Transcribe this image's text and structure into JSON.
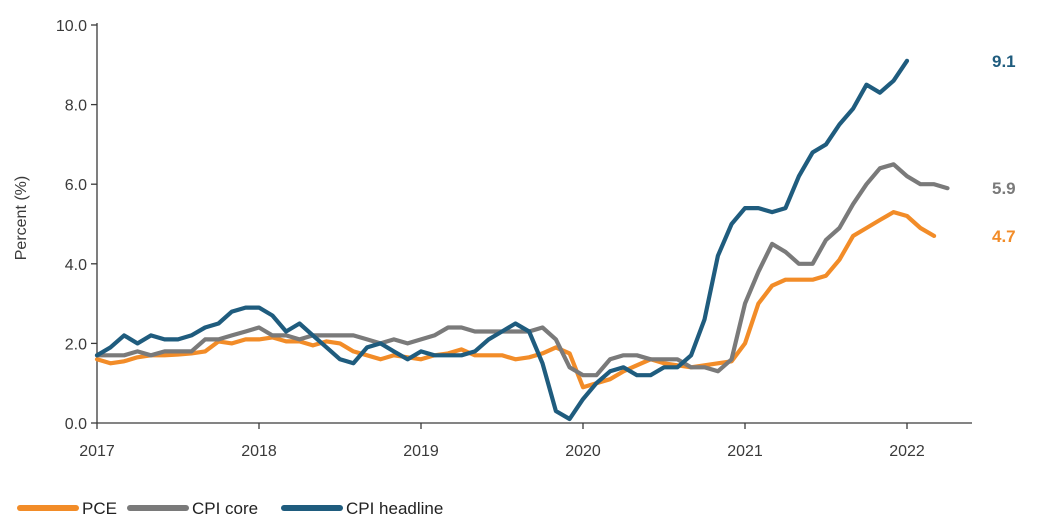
{
  "chart_data": {
    "type": "line",
    "ylabel": "Percent (%)",
    "xlabel": "",
    "ylim": [
      0,
      10
    ],
    "xlim": [
      2017,
      2022.42
    ],
    "yticks": [
      0,
      2,
      4,
      6,
      8,
      10
    ],
    "ytick_labels": [
      "0.0",
      "2.0",
      "4.0",
      "6.0",
      "8.0",
      "10.0"
    ],
    "xticks": [
      2017,
      2018,
      2019,
      2020,
      2021,
      2022
    ],
    "xtick_labels": [
      "2017",
      "2018",
      "2019",
      "2020",
      "2021",
      "2022"
    ],
    "grid": false,
    "legend_position": "bottom-left",
    "series": [
      {
        "name": "PCE",
        "color": "#F28C28",
        "end_label": "4.7",
        "points": [
          [
            2017.0,
            1.6
          ],
          [
            2017.083,
            1.5
          ],
          [
            2017.167,
            1.55
          ],
          [
            2017.25,
            1.65
          ],
          [
            2017.333,
            1.7
          ],
          [
            2017.417,
            1.7
          ],
          [
            2017.5,
            1.72
          ],
          [
            2017.583,
            1.75
          ],
          [
            2017.667,
            1.8
          ],
          [
            2017.75,
            2.05
          ],
          [
            2017.833,
            2.0
          ],
          [
            2017.917,
            2.1
          ],
          [
            2018.0,
            2.1
          ],
          [
            2018.083,
            2.15
          ],
          [
            2018.167,
            2.05
          ],
          [
            2018.25,
            2.05
          ],
          [
            2018.333,
            1.95
          ],
          [
            2018.417,
            2.05
          ],
          [
            2018.5,
            2.0
          ],
          [
            2018.583,
            1.8
          ],
          [
            2018.667,
            1.7
          ],
          [
            2018.75,
            1.6
          ],
          [
            2018.833,
            1.7
          ],
          [
            2018.917,
            1.65
          ],
          [
            2019.0,
            1.6
          ],
          [
            2019.083,
            1.7
          ],
          [
            2019.167,
            1.75
          ],
          [
            2019.25,
            1.85
          ],
          [
            2019.333,
            1.7
          ],
          [
            2019.417,
            1.7
          ],
          [
            2019.5,
            1.7
          ],
          [
            2019.583,
            1.6
          ],
          [
            2019.667,
            1.65
          ],
          [
            2019.75,
            1.75
          ],
          [
            2019.833,
            1.9
          ],
          [
            2019.917,
            1.75
          ],
          [
            2020.0,
            0.9
          ],
          [
            2020.083,
            1.0
          ],
          [
            2020.167,
            1.1
          ],
          [
            2020.25,
            1.3
          ],
          [
            2020.333,
            1.45
          ],
          [
            2020.417,
            1.6
          ],
          [
            2020.5,
            1.5
          ],
          [
            2020.583,
            1.45
          ],
          [
            2020.667,
            1.4
          ],
          [
            2020.75,
            1.45
          ],
          [
            2020.833,
            1.5
          ],
          [
            2020.917,
            1.55
          ],
          [
            2021.0,
            2.0
          ],
          [
            2021.083,
            3.0
          ],
          [
            2021.167,
            3.45
          ],
          [
            2021.25,
            3.6
          ],
          [
            2021.333,
            3.6
          ],
          [
            2021.417,
            3.6
          ],
          [
            2021.5,
            3.7
          ],
          [
            2021.583,
            4.1
          ],
          [
            2021.667,
            4.7
          ],
          [
            2021.75,
            4.9
          ],
          [
            2021.833,
            5.1
          ],
          [
            2021.917,
            5.3
          ],
          [
            2022.0,
            5.2
          ],
          [
            2022.083,
            4.9
          ],
          [
            2022.167,
            4.7
          ]
        ]
      },
      {
        "name": "CPI core",
        "color": "#7A7A7A",
        "end_label": "5.9",
        "points": [
          [
            2017.0,
            1.7
          ],
          [
            2017.083,
            1.7
          ],
          [
            2017.167,
            1.7
          ],
          [
            2017.25,
            1.8
          ],
          [
            2017.333,
            1.7
          ],
          [
            2017.417,
            1.8
          ],
          [
            2017.5,
            1.8
          ],
          [
            2017.583,
            1.8
          ],
          [
            2017.667,
            2.1
          ],
          [
            2017.75,
            2.1
          ],
          [
            2017.833,
            2.2
          ],
          [
            2017.917,
            2.3
          ],
          [
            2018.0,
            2.4
          ],
          [
            2018.083,
            2.2
          ],
          [
            2018.167,
            2.2
          ],
          [
            2018.25,
            2.1
          ],
          [
            2018.333,
            2.2
          ],
          [
            2018.417,
            2.2
          ],
          [
            2018.5,
            2.2
          ],
          [
            2018.583,
            2.2
          ],
          [
            2018.667,
            2.1
          ],
          [
            2018.75,
            2.0
          ],
          [
            2018.833,
            2.1
          ],
          [
            2018.917,
            2.0
          ],
          [
            2019.0,
            2.1
          ],
          [
            2019.083,
            2.2
          ],
          [
            2019.167,
            2.4
          ],
          [
            2019.25,
            2.4
          ],
          [
            2019.333,
            2.3
          ],
          [
            2019.417,
            2.3
          ],
          [
            2019.5,
            2.3
          ],
          [
            2019.583,
            2.3
          ],
          [
            2019.667,
            2.3
          ],
          [
            2019.75,
            2.4
          ],
          [
            2019.833,
            2.1
          ],
          [
            2019.917,
            1.4
          ],
          [
            2020.0,
            1.2
          ],
          [
            2020.083,
            1.2
          ],
          [
            2020.167,
            1.6
          ],
          [
            2020.25,
            1.7
          ],
          [
            2020.333,
            1.7
          ],
          [
            2020.417,
            1.6
          ],
          [
            2020.5,
            1.6
          ],
          [
            2020.583,
            1.6
          ],
          [
            2020.667,
            1.4
          ],
          [
            2020.75,
            1.4
          ],
          [
            2020.833,
            1.3
          ],
          [
            2020.917,
            1.6
          ],
          [
            2021.0,
            3.0
          ],
          [
            2021.083,
            3.8
          ],
          [
            2021.167,
            4.5
          ],
          [
            2021.25,
            4.3
          ],
          [
            2021.333,
            4.0
          ],
          [
            2021.417,
            4.0
          ],
          [
            2021.5,
            4.6
          ],
          [
            2021.583,
            4.9
          ],
          [
            2021.667,
            5.5
          ],
          [
            2021.75,
            6.0
          ],
          [
            2021.833,
            6.4
          ],
          [
            2021.917,
            6.5
          ],
          [
            2022.0,
            6.2
          ],
          [
            2022.083,
            6.0
          ],
          [
            2022.167,
            6.0
          ],
          [
            2022.25,
            5.9
          ]
        ]
      },
      {
        "name": "CPI headline",
        "color": "#1F5C7E",
        "end_label": "9.1",
        "points": [
          [
            2017.0,
            1.7
          ],
          [
            2017.083,
            1.9
          ],
          [
            2017.167,
            2.2
          ],
          [
            2017.25,
            2.0
          ],
          [
            2017.333,
            2.2
          ],
          [
            2017.417,
            2.1
          ],
          [
            2017.5,
            2.1
          ],
          [
            2017.583,
            2.2
          ],
          [
            2017.667,
            2.4
          ],
          [
            2017.75,
            2.5
          ],
          [
            2017.833,
            2.8
          ],
          [
            2017.917,
            2.9
          ],
          [
            2018.0,
            2.9
          ],
          [
            2018.083,
            2.7
          ],
          [
            2018.167,
            2.3
          ],
          [
            2018.25,
            2.5
          ],
          [
            2018.333,
            2.2
          ],
          [
            2018.417,
            1.9
          ],
          [
            2018.5,
            1.6
          ],
          [
            2018.583,
            1.5
          ],
          [
            2018.667,
            1.9
          ],
          [
            2018.75,
            2.0
          ],
          [
            2018.833,
            1.8
          ],
          [
            2018.917,
            1.6
          ],
          [
            2019.0,
            1.8
          ],
          [
            2019.083,
            1.7
          ],
          [
            2019.167,
            1.7
          ],
          [
            2019.25,
            1.7
          ],
          [
            2019.333,
            1.8
          ],
          [
            2019.417,
            2.1
          ],
          [
            2019.5,
            2.3
          ],
          [
            2019.583,
            2.5
          ],
          [
            2019.667,
            2.3
          ],
          [
            2019.75,
            1.5
          ],
          [
            2019.833,
            0.3
          ],
          [
            2019.917,
            0.1
          ],
          [
            2020.0,
            0.6
          ],
          [
            2020.083,
            1.0
          ],
          [
            2020.167,
            1.3
          ],
          [
            2020.25,
            1.4
          ],
          [
            2020.333,
            1.2
          ],
          [
            2020.417,
            1.2
          ],
          [
            2020.5,
            1.4
          ],
          [
            2020.583,
            1.4
          ],
          [
            2020.667,
            1.7
          ],
          [
            2020.75,
            2.6
          ],
          [
            2020.833,
            4.2
          ],
          [
            2020.917,
            5.0
          ],
          [
            2021.0,
            5.4
          ],
          [
            2021.083,
            5.4
          ],
          [
            2021.167,
            5.3
          ],
          [
            2021.25,
            5.4
          ],
          [
            2021.333,
            6.2
          ],
          [
            2021.417,
            6.8
          ],
          [
            2021.5,
            7.0
          ],
          [
            2021.583,
            7.5
          ],
          [
            2021.667,
            7.9
          ],
          [
            2021.75,
            8.5
          ],
          [
            2021.833,
            8.3
          ],
          [
            2021.917,
            8.6
          ],
          [
            2022.0,
            9.1
          ]
        ]
      }
    ]
  }
}
